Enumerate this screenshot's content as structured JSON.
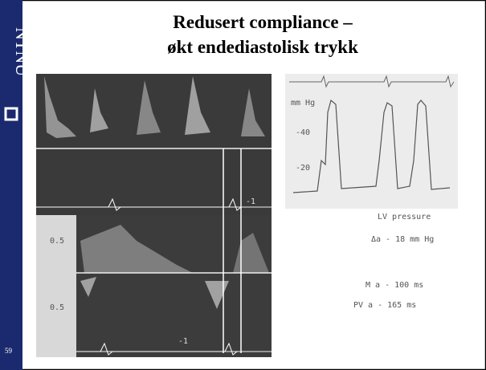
{
  "sidebar": {
    "logo_text": "NTNU",
    "slide_number": "59"
  },
  "header": {
    "title_line_1": "Redusert compliance –",
    "title_line_2": "økt endediastolisk trykk"
  },
  "figure": {
    "pressure_unit": "mm Hg",
    "pressure_ticks": [
      "-40",
      "-20"
    ],
    "pressure_label": "LV pressure",
    "delta_a": "Δa - 18 mm Hg",
    "m_a": "M a - 100 ms",
    "pv_a": "PV a - 165 ms",
    "scale_labels": [
      "0.5",
      "0.5"
    ],
    "baseline_labels": [
      "-1",
      "-1"
    ]
  }
}
